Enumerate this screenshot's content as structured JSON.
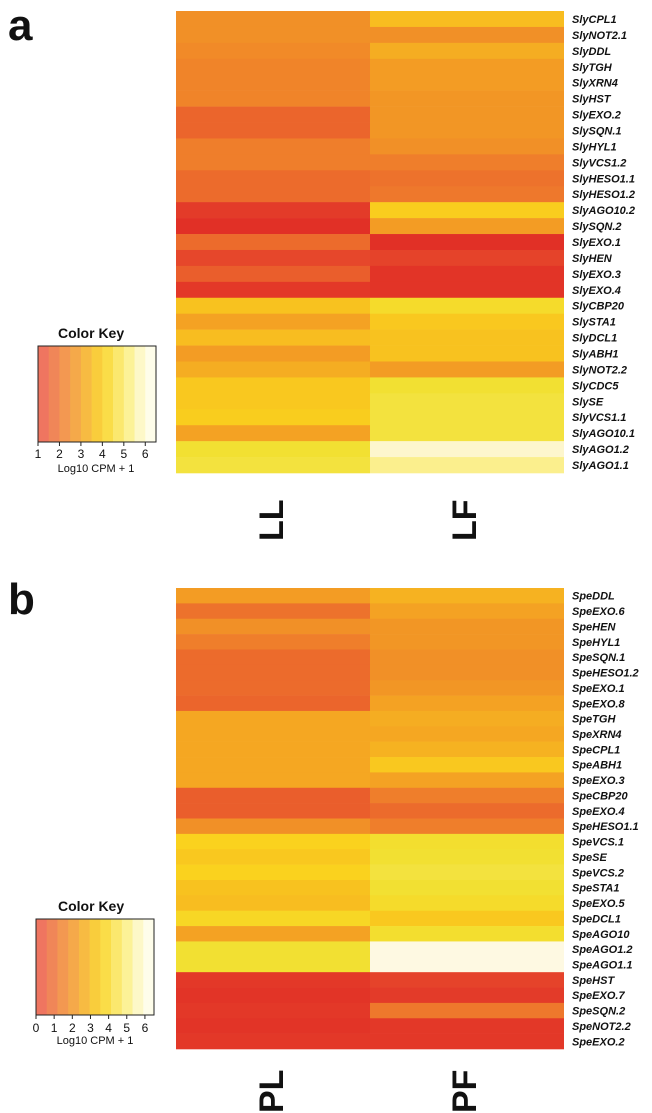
{
  "palette": [
    "#ef7560",
    "#f08658",
    "#f39851",
    "#f5a94a",
    "#f7bb42",
    "#f9cd3c",
    "#fadd48",
    "#fbe86e",
    "#fcf297",
    "#fdf8c8",
    "#fefdea"
  ],
  "chart_data": [
    {
      "type": "heatmap",
      "panel_label": "a",
      "columns": [
        "LL",
        "LF"
      ],
      "rows": [
        "SlyCPL1",
        "SlyNOT2.1",
        "SlyDDL",
        "SlyTGH",
        "SlyXRN4",
        "SlyHST",
        "SlyEXO.2",
        "SlySQN.1",
        "SlyHYL1",
        "SlyVCS1.2",
        "SlyHESO1.1",
        "SlyHESO1.2",
        "SlyAGO10.2",
        "SlySQN.2",
        "SlyEXO.1",
        "SlyHEN",
        "SlyEXO.3",
        "SlyEXO.4",
        "SlyCBP20",
        "SlySTA1",
        "SlyDCL1",
        "SlyABH1",
        "SlyNOT2.2",
        "SlyCDC5",
        "SlySE",
        "SlyVCS1.1",
        "SlyAGO10.1",
        "SlyAGO1.2",
        "SlyAGO1.1"
      ],
      "values": [
        [
          3.6,
          4.4
        ],
        [
          3.6,
          3.6
        ],
        [
          3.5,
          4.1
        ],
        [
          3.4,
          3.8
        ],
        [
          3.4,
          3.8
        ],
        [
          3.4,
          3.7
        ],
        [
          2.9,
          3.7
        ],
        [
          2.9,
          3.7
        ],
        [
          3.3,
          3.6
        ],
        [
          3.3,
          3.3
        ],
        [
          3.0,
          3.1
        ],
        [
          3.0,
          3.2
        ],
        [
          2.1,
          4.7
        ],
        [
          1.8,
          3.8
        ],
        [
          3.0,
          1.8
        ],
        [
          2.4,
          2.3
        ],
        [
          2.8,
          1.9
        ],
        [
          2.0,
          1.9
        ],
        [
          4.5,
          5.2
        ],
        [
          3.9,
          4.6
        ],
        [
          4.4,
          4.5
        ],
        [
          3.8,
          4.5
        ],
        [
          4.1,
          3.8
        ],
        [
          4.6,
          5.4
        ],
        [
          4.6,
          5.5
        ],
        [
          4.7,
          5.5
        ],
        [
          3.9,
          5.5
        ],
        [
          5.4,
          6.8
        ],
        [
          5.5,
          6.2
        ]
      ],
      "color_key": {
        "title": "Color Key",
        "ticks": [
          "1",
          "2",
          "3",
          "4",
          "5",
          "6"
        ],
        "label": "Log10 CPM + 1",
        "range": [
          1,
          6.5
        ]
      }
    },
    {
      "type": "heatmap",
      "panel_label": "b",
      "columns": [
        "PL",
        "PF"
      ],
      "rows": [
        "SpeDDL",
        "SpeEXO.6",
        "SpeHEN",
        "SpeHYL1",
        "SpeSQN.1",
        "SpeHESO1.2",
        "SpeEXO.1",
        "SpeEXO.8",
        "SpeTGH",
        "SpeXRN4",
        "SpeCPL1",
        "SpeABH1",
        "SpeEXO.3",
        "SpeCBP20",
        "SpeEXO.4",
        "SpeHESO1.1",
        "SpeVCS.1",
        "SpeSE",
        "SpeVCS.2",
        "SpeSTA1",
        "SpeEXO.5",
        "SpeDCL1",
        "SpeAGO10",
        "SpeAGO1.2",
        "SpeAGO1.1",
        "SpeHST",
        "SpeEXO.7",
        "SpeSQN.2",
        "SpeNOT2.2",
        "SpeEXO.2"
      ],
      "values": [
        [
          3.8,
          4.2
        ],
        [
          3.1,
          3.9
        ],
        [
          3.6,
          3.7
        ],
        [
          3.3,
          3.7
        ],
        [
          3.0,
          3.6
        ],
        [
          3.0,
          3.6
        ],
        [
          3.0,
          3.7
        ],
        [
          2.9,
          3.9
        ],
        [
          4.0,
          4.1
        ],
        [
          4.0,
          4.0
        ],
        [
          4.0,
          4.2
        ],
        [
          4.0,
          4.6
        ],
        [
          4.0,
          3.9
        ],
        [
          2.8,
          3.3
        ],
        [
          2.8,
          3.0
        ],
        [
          3.6,
          3.3
        ],
        [
          4.8,
          5.3
        ],
        [
          4.6,
          5.4
        ],
        [
          4.8,
          5.5
        ],
        [
          4.5,
          5.4
        ],
        [
          4.4,
          5.2
        ],
        [
          5.0,
          4.6
        ],
        [
          3.9,
          5.3
        ],
        [
          5.4,
          7.0
        ],
        [
          5.4,
          7.0
        ],
        [
          2.0,
          2.3
        ],
        [
          1.9,
          2.1
        ],
        [
          2.0,
          3.2
        ],
        [
          1.9,
          2.0
        ],
        [
          2.0,
          2.0
        ]
      ],
      "color_key": {
        "title": "Color Key",
        "ticks": [
          "0",
          "1",
          "2",
          "3",
          "4",
          "5",
          "6"
        ],
        "label": "Log10 CPM + 1",
        "range": [
          0,
          6.5
        ]
      }
    }
  ]
}
